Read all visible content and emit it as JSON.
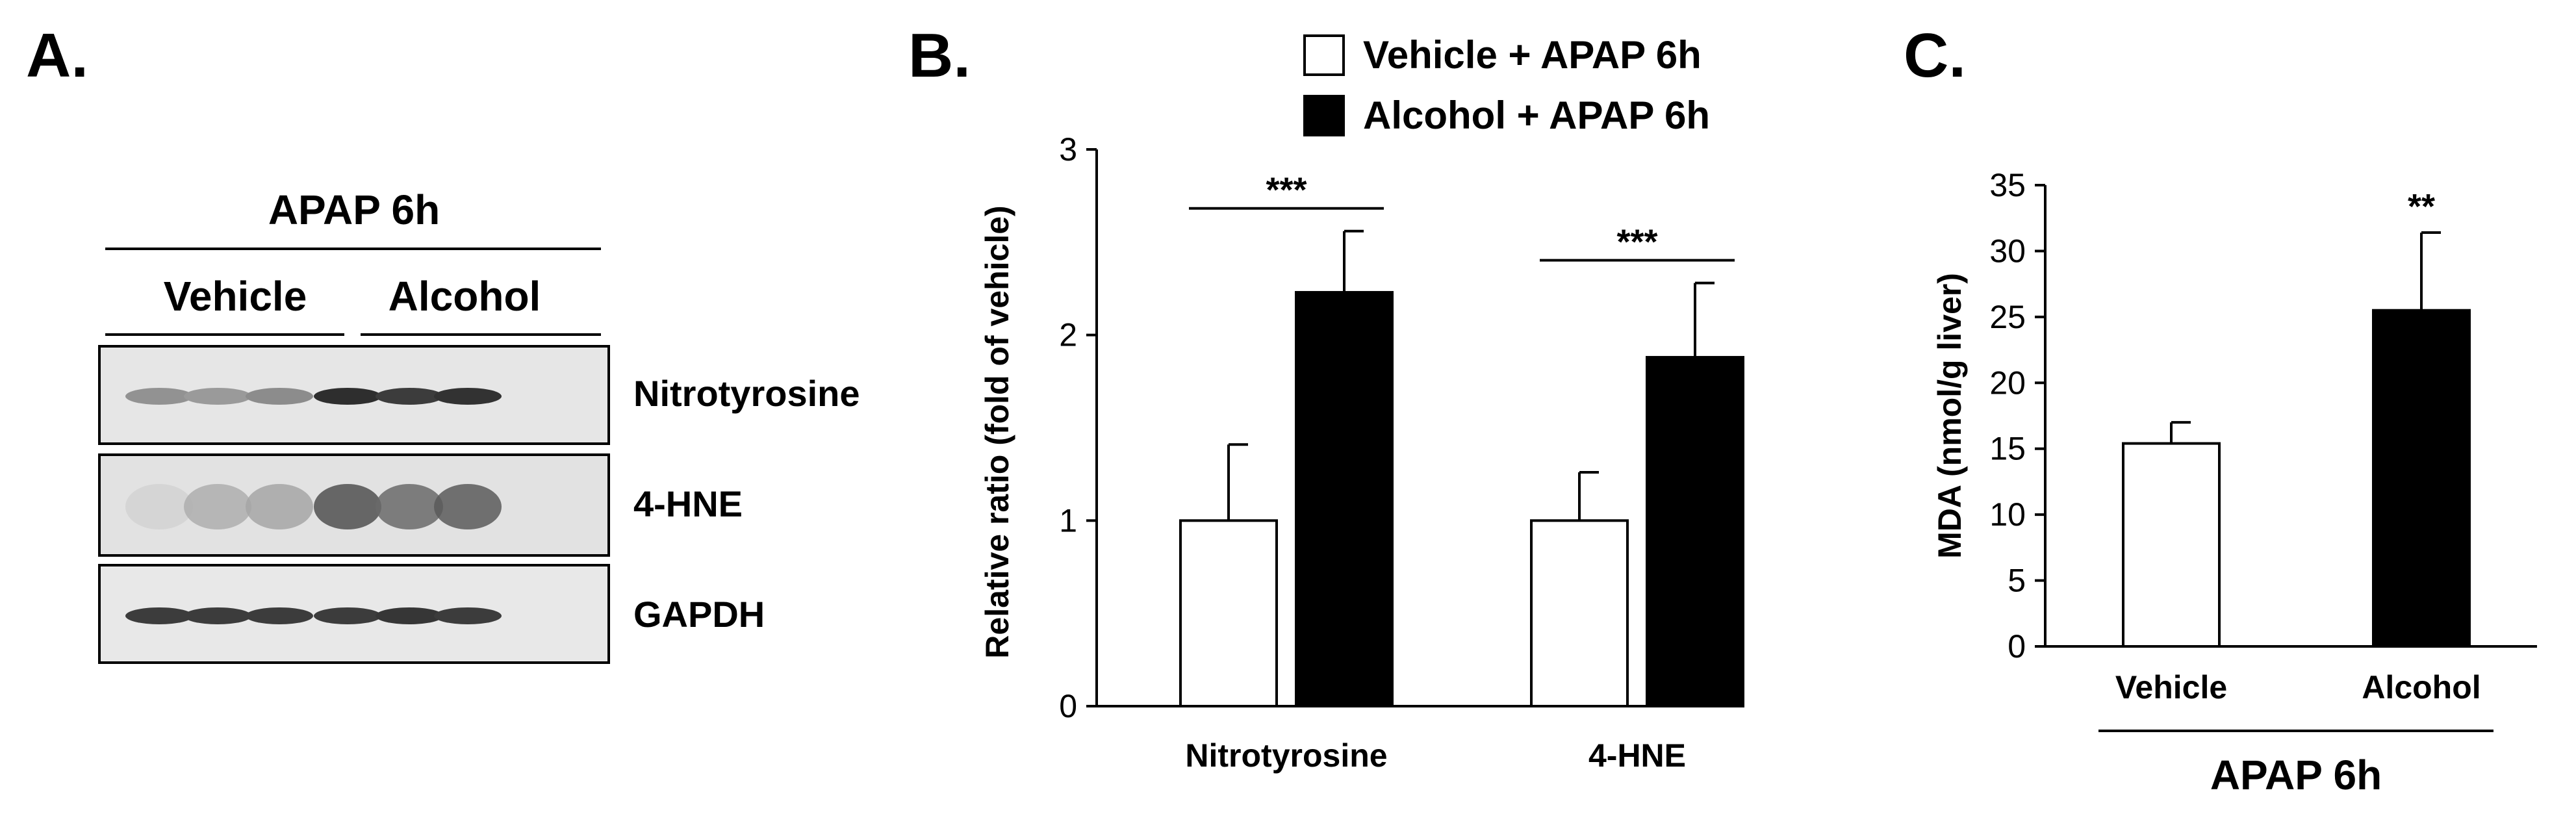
{
  "panel_a": {
    "letter": "A.",
    "header": "APAP 6h",
    "groups": [
      "Vehicle",
      "Alcohol"
    ],
    "blots": [
      {
        "label": "Nitrotyrosine",
        "intensity": [
          0.42,
          0.38,
          0.45,
          0.92,
          0.85,
          0.9
        ]
      },
      {
        "label": "4-HNE",
        "intensity": [
          0.1,
          0.28,
          0.32,
          0.75,
          0.62,
          0.7
        ]
      },
      {
        "label": "GAPDH",
        "intensity": [
          0.85,
          0.85,
          0.85,
          0.85,
          0.88,
          0.85
        ]
      }
    ]
  },
  "chart_data": [
    {
      "panel": "B.",
      "type": "bar",
      "categories": [
        "Nitrotyrosine",
        "4-HNE"
      ],
      "ylabel": "Relative ratio (fold of vehicle)",
      "ylim": [
        0,
        3
      ],
      "yticks": [
        "0",
        "1",
        "2",
        "3"
      ],
      "series": [
        {
          "name": "Vehicle + APAP 6h",
          "values": [
            1.0,
            1.0
          ],
          "errors": [
            0.41,
            0.26
          ],
          "color": "#ffffff"
        },
        {
          "name": "Alcohol + APAP 6h",
          "values": [
            2.23,
            1.88
          ],
          "errors": [
            0.33,
            0.4
          ],
          "color": "#000000"
        }
      ],
      "significance": [
        "***",
        "***"
      ],
      "legend_position": "top"
    },
    {
      "panel": "C.",
      "type": "bar",
      "categories": [
        "Vehicle",
        "Alcohol"
      ],
      "ylabel": "MDA (nmol/g liver)",
      "ylim": [
        0,
        35
      ],
      "yticks": [
        "0",
        "5",
        "10",
        "15",
        "20",
        "25",
        "30",
        "35"
      ],
      "values": [
        15.4,
        25.5
      ],
      "errors": [
        1.6,
        5.9
      ],
      "colors": [
        "#ffffff",
        "#000000"
      ],
      "significance": [
        "",
        "**"
      ],
      "group_label": "APAP 6h"
    }
  ]
}
